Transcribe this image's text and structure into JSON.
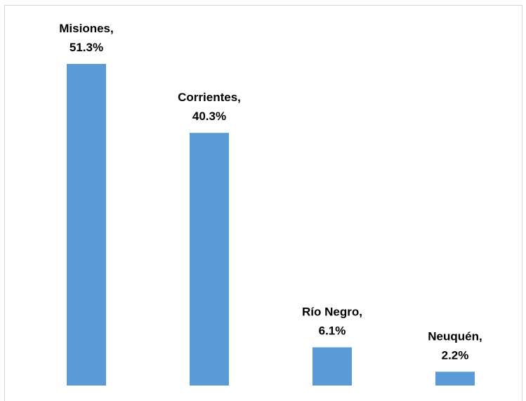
{
  "chart_data": {
    "type": "bar",
    "categories": [
      "Misiones",
      "Corrientes",
      "Río Negro",
      "Neuquén"
    ],
    "values": [
      51.3,
      40.3,
      6.1,
      2.2
    ],
    "data_labels": [
      {
        "category": "Misiones,",
        "value": "51.3%"
      },
      {
        "category": "Corrientes,",
        "value": "40.3%"
      },
      {
        "category": "Río Negro,",
        "value": "6.1%"
      },
      {
        "category": "Neuquén,",
        "value": "2.2%"
      }
    ],
    "title": "",
    "xlabel": "",
    "ylabel": "",
    "ylim": [
      0,
      51.3
    ],
    "grid": false,
    "legend": "none",
    "bar_color": "#5b9bd5"
  }
}
